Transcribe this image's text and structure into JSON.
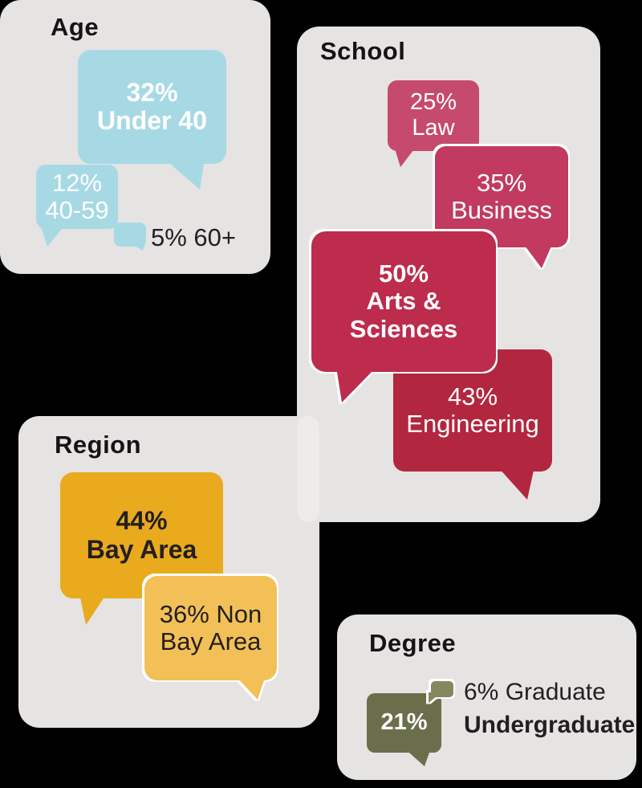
{
  "panels": {
    "age": {
      "title": "Age",
      "bubble_large": {
        "value": "32%",
        "label": "Under 40"
      },
      "bubble_medium": {
        "value": "12%",
        "label": "40-59"
      },
      "bubble_small_label": "5% 60+"
    },
    "school": {
      "title": "School",
      "law": {
        "value": "25%",
        "label": "Law"
      },
      "business": {
        "value": "35%",
        "label": "Business"
      },
      "arts_sciences": {
        "value": "50%",
        "label": "Arts & Sciences"
      },
      "engineering": {
        "value": "43%",
        "label": "Engineering"
      }
    },
    "region": {
      "title": "Region",
      "bay_area": {
        "value": "44%",
        "label": "Bay Area"
      },
      "non_bay_area": {
        "line1": "36% Non",
        "line2": "Bay Area"
      }
    },
    "degree": {
      "title": "Degree",
      "undergraduate_value": "21%",
      "graduate_label": "6% Graduate",
      "undergraduate_label": "Undergraduate"
    }
  },
  "colors": {
    "background": "#000000",
    "panel_gray": "#e5e4e3",
    "age_blue": "#a7d9e5",
    "law_pink": "#c64a6d",
    "business_pink": "#c23a60",
    "arts_sciences_crimson": "#bd2b4d",
    "engineering_red": "#b2273f",
    "bay_area_orange": "#e9aa1e",
    "non_bay_orange": "#f2c057",
    "undergraduate_olive": "#6a6e4b",
    "graduate_olive_light": "#84885f",
    "dark_text": "#231f20",
    "light_text": "#ffffff"
  },
  "chart_data": [
    {
      "type": "bar",
      "style": "speech-bubble pictogram",
      "title": "Age",
      "categories": [
        "Under 40",
        "40-59",
        "60+"
      ],
      "values": [
        32,
        12,
        5
      ],
      "unit": "%"
    },
    {
      "type": "bar",
      "style": "speech-bubble pictogram",
      "title": "School",
      "categories": [
        "Law",
        "Business",
        "Arts & Sciences",
        "Engineering"
      ],
      "values": [
        25,
        35,
        50,
        43
      ],
      "unit": "%"
    },
    {
      "type": "bar",
      "style": "speech-bubble pictogram",
      "title": "Region",
      "categories": [
        "Bay Area",
        "Non Bay Area"
      ],
      "values": [
        44,
        36
      ],
      "unit": "%"
    },
    {
      "type": "bar",
      "style": "speech-bubble pictogram",
      "title": "Degree",
      "categories": [
        "Undergraduate",
        "Graduate"
      ],
      "values": [
        21,
        6
      ],
      "unit": "%"
    }
  ]
}
